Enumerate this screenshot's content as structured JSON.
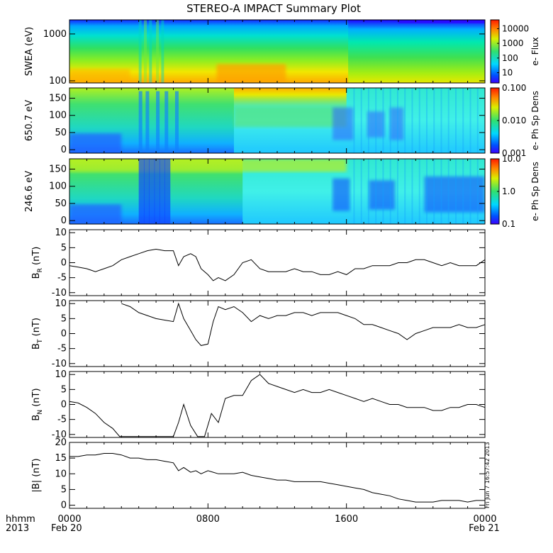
{
  "title": "STEREO-A IMPACT Summary Plot",
  "x_axis": {
    "tick_labels": [
      "0000",
      "0800",
      "1600",
      "0000"
    ],
    "date_labels": [
      "Feb 20",
      "Feb 21"
    ],
    "format_label": "hhmm",
    "year_label": "2013",
    "range_hours": [
      0,
      24
    ]
  },
  "timestamp": "Fri Jun  7 16:57:42 2013",
  "colors": {
    "trace": "#000000",
    "frame": "#000000"
  },
  "chart_data": [
    {
      "type": "heatmap",
      "ylabel": "SWEA (eV)",
      "yscale": "log",
      "ylim": [
        90,
        2000
      ],
      "yticks": [
        "100",
        "1000"
      ],
      "colorbar_label": "e- Flux",
      "colorbar_scale": "log",
      "colorbar_ticks": [
        "10",
        "100",
        "1000",
        "10000"
      ],
      "colorbar_range": [
        2,
        40000
      ]
    },
    {
      "type": "heatmap",
      "ylabel": "650.7 eV",
      "ylim": [
        -10,
        180
      ],
      "yticks": [
        "0",
        "50",
        "100",
        "150"
      ],
      "colorbar_label": "e- Ph Sp Dens",
      "colorbar_scale": "log",
      "colorbar_ticks": [
        "0.001",
        "0.010",
        "0.100"
      ],
      "colorbar_range": [
        0.001,
        0.1
      ]
    },
    {
      "type": "heatmap",
      "ylabel": "246.6 eV",
      "ylim": [
        -10,
        180
      ],
      "yticks": [
        "0",
        "50",
        "100",
        "150"
      ],
      "colorbar_label": "e- Ph Sp Dens",
      "colorbar_scale": "log",
      "colorbar_ticks": [
        "0.1",
        "1.0",
        "10.0"
      ],
      "colorbar_range": [
        0.1,
        10
      ]
    },
    {
      "type": "line",
      "ylabel_main": "B",
      "ylabel_sub": "R",
      "ylabel_unit": " (nT)",
      "ylim": [
        -11,
        11
      ],
      "yticks": [
        "-10",
        "-5",
        "0",
        "5",
        "10"
      ],
      "x_hours": [
        0,
        0.5,
        1,
        1.5,
        2,
        2.5,
        3,
        3.5,
        4,
        4.5,
        5,
        5.5,
        6,
        6.3,
        6.6,
        7,
        7.3,
        7.6,
        8,
        8.3,
        8.6,
        9,
        9.5,
        10,
        10.5,
        11,
        11.5,
        12,
        12.5,
        13,
        13.5,
        14,
        14.5,
        15,
        15.5,
        16,
        16.5,
        17,
        17.5,
        18,
        18.5,
        19,
        19.5,
        20,
        20.5,
        21,
        21.5,
        22,
        22.5,
        23,
        23.5,
        24
      ],
      "values": [
        -1,
        -1.5,
        -2,
        -3,
        -2,
        -1,
        1,
        2,
        3,
        4,
        4.5,
        4,
        4,
        -1,
        2,
        3,
        2,
        -2,
        -4,
        -6,
        -5,
        -6,
        -4,
        0,
        1,
        -2,
        -3,
        -3,
        -3,
        -2,
        -3,
        -3,
        -4,
        -4,
        -3,
        -4,
        -2,
        -2,
        -1,
        -1,
        -1,
        0,
        0,
        1,
        1,
        0,
        -1,
        0,
        -1,
        -1,
        -1,
        1
      ]
    },
    {
      "type": "line",
      "ylabel_main": "B",
      "ylabel_sub": "T",
      "ylabel_unit": " (nT)",
      "ylim": [
        -11,
        11
      ],
      "yticks": [
        "-10",
        "-5",
        "0",
        "5",
        "10"
      ],
      "x_hours": [
        3,
        3.5,
        4,
        4.5,
        5,
        5.5,
        6,
        6.3,
        6.6,
        7,
        7.3,
        7.6,
        8,
        8.3,
        8.6,
        9,
        9.5,
        10,
        10.5,
        11,
        11.5,
        12,
        12.5,
        13,
        13.5,
        14,
        14.5,
        15,
        15.5,
        16,
        16.5,
        17,
        17.5,
        18,
        18.5,
        19,
        19.5,
        20,
        20.5,
        21,
        21.5,
        22,
        22.5,
        23,
        23.5,
        24
      ],
      "values": [
        10,
        9,
        7,
        6,
        5,
        4.5,
        4,
        10,
        5,
        1,
        -2,
        -4,
        -3.5,
        4,
        9,
        8,
        9,
        7,
        4,
        6,
        5,
        6,
        6,
        7,
        7,
        6,
        7,
        7,
        7,
        6,
        5,
        3,
        3,
        2,
        1,
        0,
        -2,
        0,
        1,
        2,
        2,
        2,
        3,
        2,
        2,
        3
      ]
    },
    {
      "type": "line",
      "ylabel_main": "B",
      "ylabel_sub": "N",
      "ylabel_unit": " (nT)",
      "ylim": [
        -11,
        11
      ],
      "yticks": [
        "-10",
        "-5",
        "0",
        "5",
        "10"
      ],
      "x_hours": [
        0,
        0.5,
        1,
        1.5,
        2,
        2.5,
        2.9,
        6,
        6.3,
        6.6,
        7,
        7.4,
        7.8,
        8.2,
        8.6,
        9,
        9.5,
        10,
        10.5,
        11,
        11.5,
        12,
        12.5,
        13,
        13.5,
        14,
        14.5,
        15,
        15.5,
        16,
        16.5,
        17,
        17.5,
        18,
        18.5,
        19,
        19.5,
        20,
        20.5,
        21,
        21.5,
        22,
        22.5,
        23,
        23.5,
        24
      ],
      "values": [
        1,
        0.5,
        -1,
        -3,
        -6,
        -8,
        -11,
        -11,
        -6,
        0,
        -7,
        -11,
        -11,
        -3,
        -6,
        2,
        3,
        3,
        8,
        10,
        7,
        6,
        5,
        4,
        5,
        4,
        4,
        5,
        4,
        3,
        2,
        1,
        2,
        1,
        0,
        0,
        -1,
        -1,
        -1,
        -2,
        -2,
        -1,
        -1,
        0,
        0,
        -1
      ]
    },
    {
      "type": "line",
      "ylabel_main": "|B|",
      "ylabel_sub": "",
      "ylabel_unit": " (nT)",
      "ylim": [
        -1,
        20
      ],
      "yticks": [
        "0",
        "5",
        "10",
        "15",
        "20"
      ],
      "x_hours": [
        0,
        0.5,
        1,
        1.5,
        2,
        2.5,
        3,
        3.5,
        4,
        4.5,
        5,
        5.5,
        6,
        6.3,
        6.6,
        7,
        7.3,
        7.6,
        8,
        8.3,
        8.6,
        9,
        9.5,
        10,
        10.5,
        11,
        11.5,
        12,
        12.5,
        13,
        13.5,
        14,
        14.5,
        15,
        15.5,
        16,
        16.5,
        17,
        17.5,
        18,
        18.5,
        19,
        19.5,
        20,
        20.5,
        21,
        21.5,
        22,
        22.5,
        23,
        23.5,
        24
      ],
      "values": [
        15.5,
        15.5,
        16,
        16,
        16.5,
        16.5,
        16,
        15,
        15,
        14.5,
        14.5,
        14,
        13.5,
        11,
        12,
        10.5,
        11,
        10,
        11,
        10.5,
        10,
        10,
        10,
        10.5,
        9.5,
        9,
        8.5,
        8,
        8,
        7.5,
        7.5,
        7.5,
        7.5,
        7,
        6.5,
        6,
        5.5,
        5,
        4,
        3.5,
        3,
        2,
        1.5,
        1,
        1,
        1,
        1.5,
        1.5,
        1.5,
        1,
        1.5,
        1.5
      ]
    }
  ]
}
